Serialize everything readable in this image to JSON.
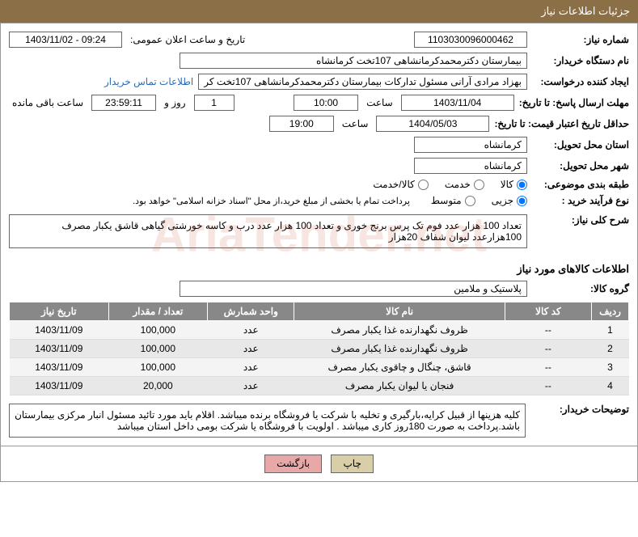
{
  "panel": {
    "header": "جزئیات اطلاعات نیاز"
  },
  "fields": {
    "need_number_label": "شماره نیاز:",
    "need_number": "1103030096000462",
    "announce_datetime_label": "تاریخ و ساعت اعلان عمومی:",
    "announce_datetime": "1403/11/02 - 09:24",
    "buyer_org_label": "نام دستگاه خریدار:",
    "buyer_org": "بیمارستان دکترمحمدکرمانشاهی 107تخت کرمانشاه",
    "requester_label": "ایجاد کننده درخواست:",
    "requester": "بهزاد مرادی آرانی مسئول تدارکات بیمارستان دکترمحمدکرمانشاهی 107تخت کر",
    "contact_link": "اطلاعات تماس خریدار",
    "reply_deadline_label": "مهلت ارسال پاسخ: تا تاریخ:",
    "reply_deadline_date": "1403/11/04",
    "reply_deadline_time": "10:00",
    "time_label": "ساعت",
    "remaining_days": "1",
    "remaining_time": "23:59:11",
    "remaining_days_label": "روز و",
    "remaining_suffix": "ساعت باقی مانده",
    "min_valid_label": "حداقل تاریخ اعتبار قیمت: تا تاریخ:",
    "min_valid_date": "1404/05/03",
    "min_valid_time": "19:00",
    "delivery_province_label": "استان محل تحویل:",
    "delivery_province": "کرمانشاه",
    "delivery_city_label": "شهر محل تحویل:",
    "delivery_city": "کرمانشاه",
    "category_label": "طبقه بندی موضوعی:",
    "cat_goods": "کالا",
    "cat_service": "خدمت",
    "cat_both": "کالا/خدمت",
    "purchase_type_label": "نوع فرآیند خرید :",
    "pt_minor": "جزیی",
    "pt_medium": "متوسط",
    "payment_note": "پرداخت تمام یا بخشی از مبلغ خرید،از محل \"اسناد خزانه اسلامی\" خواهد بود.",
    "summary_label": "شرح کلی نیاز:",
    "summary_text": "تعداد 100 هزار عدد فوم تک پرس برنج خوری و تعداد 100 هزار عدد درب و کاسه خورشتی گیاهی قاشق یکبار مصرف 100هزارعدد لیوان شفاف 20هزار",
    "items_section_title": "اطلاعات کالاهای مورد نیاز",
    "group_label": "گروه کالا:",
    "group_value": "پلاستیک و ملامین",
    "buyer_notes_label": "توضیحات خریدار:",
    "buyer_notes": "کلیه هزینها از قبیل کرایه،بارگیری و تخلیه با شرکت یا فروشگاه برنده میباشد. اقلام باید مورد تائید مسئول انبار مرکزی بیمارستان باشد.پرداخت به صورت 180روز کاری میباشد . اولویت با فروشگاه یا شرکت بومی داخل استان میباشد"
  },
  "table": {
    "columns": [
      "ردیف",
      "کد کالا",
      "نام کالا",
      "واحد شمارش",
      "تعداد / مقدار",
      "تاریخ نیاز"
    ],
    "rows": [
      [
        "1",
        "--",
        "ظروف نگهدارنده غذا یکبار مصرف",
        "عدد",
        "100,000",
        "1403/11/09"
      ],
      [
        "2",
        "--",
        "ظروف نگهدارنده غذا یکبار مصرف",
        "عدد",
        "100,000",
        "1403/11/09"
      ],
      [
        "3",
        "--",
        "قاشق، چنگال و چاقوی یکبار مصرف",
        "عدد",
        "100,000",
        "1403/11/09"
      ],
      [
        "4",
        "--",
        "فنجان یا لیوان یکبار مصرف",
        "عدد",
        "20,000",
        "1403/11/09"
      ]
    ]
  },
  "buttons": {
    "print": "چاپ",
    "back": "بازگشت"
  }
}
